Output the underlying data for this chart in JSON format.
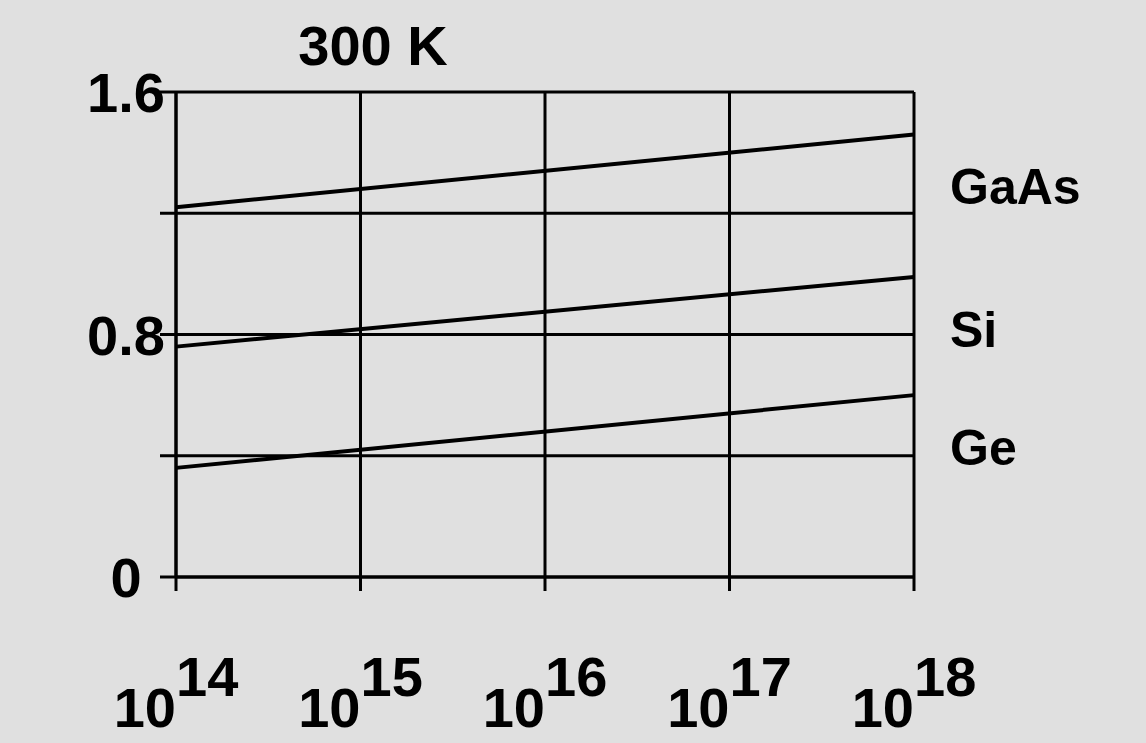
{
  "chart_data": {
    "type": "line",
    "title": "300 K",
    "log": "x",
    "grid": true,
    "marker": "none",
    "line_style": "solid",
    "x": [
      100000000000000.0,
      1e+18
    ],
    "xlim": [
      100000000000000.0,
      1e+18
    ],
    "xticks": [
      {
        "value": 100000000000000.0,
        "label": "10$^{14}$"
      },
      {
        "value": 1000000000000000.0,
        "label": "10$^{15}$"
      },
      {
        "value": 1e+16,
        "label": "10$^{16}$"
      },
      {
        "value": 1e+17,
        "label": "10$^{17}$"
      },
      {
        "value": 1e+18,
        "label": "10$^{18}$"
      }
    ],
    "ylim": [
      0,
      1.6
    ],
    "yticks": [
      0,
      {
        "value": 0.4,
        "label": null
      },
      0.8,
      {
        "value": 1.2,
        "label": null
      },
      1.6
    ],
    "series": [
      {
        "name": "GaAs",
        "color": "#000000",
        "values": [
          1.22,
          1.46
        ]
      },
      {
        "name": "Si",
        "color": "#000000",
        "values": [
          0.76,
          0.99
        ]
      },
      {
        "name": "Ge",
        "color": "#000000",
        "values": [
          0.36,
          0.6
        ]
      }
    ]
  }
}
